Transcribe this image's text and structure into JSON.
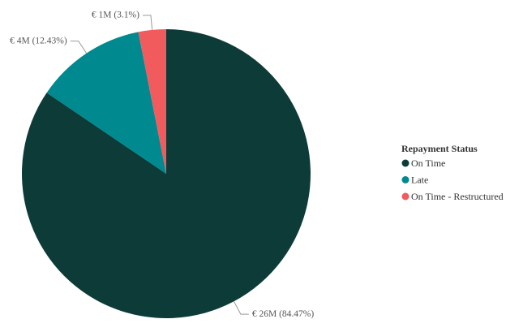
{
  "chart_data": {
    "type": "pie",
    "categories": [
      "On Time",
      "Late",
      "On Time - Restructured"
    ],
    "values": [
      84.47,
      12.43,
      3.1
    ],
    "value_labels": [
      "€ 26M (84.47%)",
      "€ 4M (12.43%)",
      "€ 1M (3.1%)"
    ],
    "colors": [
      "#0d3b38",
      "#00898f",
      "#f15b5e"
    ],
    "legend_title": "Repayment Status",
    "legend": "right"
  }
}
